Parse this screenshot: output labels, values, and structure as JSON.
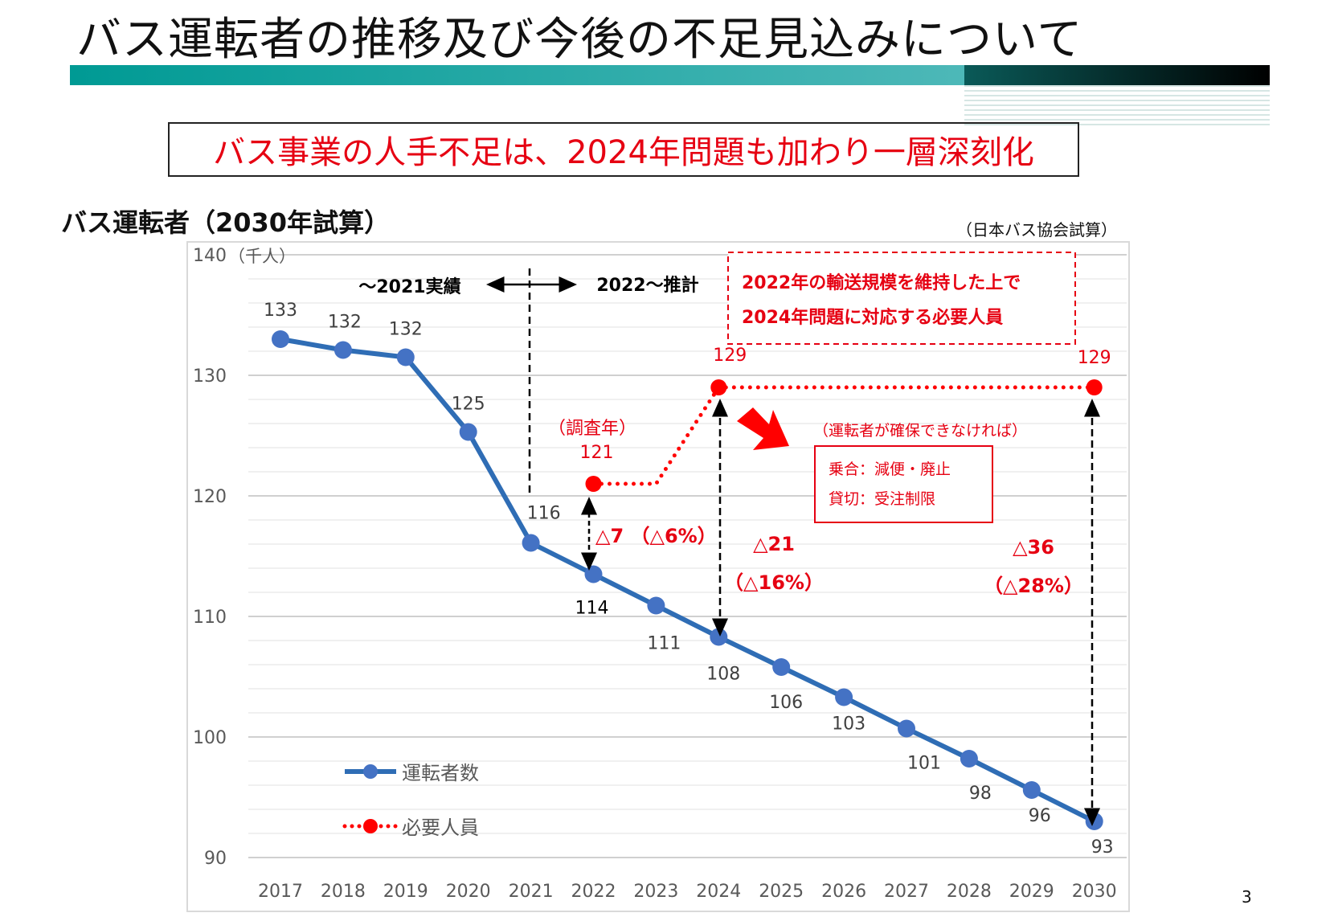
{
  "slide": {
    "title": "バス運転者の推移及び今後の不足見込みについて",
    "headline": "バス事業の人手不足は、2024年問題も加わり一層深刻化",
    "chart_heading": "バス運転者（2030年試算）",
    "source": "（日本バス協会試算）",
    "page_number": "3",
    "colors": {
      "accent_teal": "#009a94",
      "headline_red": "#e60012",
      "series_blue": "#4472c4",
      "series_line": "#2f6db5",
      "series_red": "#ff0000"
    }
  },
  "chart_data": {
    "type": "line",
    "unit_label": "（千人）",
    "categories": [
      "2017",
      "2018",
      "2019",
      "2020",
      "2021",
      "2022",
      "2023",
      "2024",
      "2025",
      "2026",
      "2027",
      "2028",
      "2029",
      "2030"
    ],
    "ylim": [
      90,
      140
    ],
    "yticks": [
      "90",
      "100",
      "110",
      "120",
      "130",
      "140"
    ],
    "grid": true,
    "legend_position": "bottom-left",
    "series": [
      {
        "name": "運転者数",
        "color": "#4472c4",
        "values": [
          133.0,
          132.1,
          131.5,
          125.3,
          116.1,
          113.5,
          110.9,
          108.3,
          105.8,
          103.3,
          100.7,
          98.2,
          95.6,
          93.0
        ],
        "labels": [
          "133",
          "132",
          "132",
          "125",
          "116",
          "114",
          "111",
          "108",
          "106",
          "103",
          "101",
          "98",
          "96",
          "93"
        ]
      },
      {
        "name": "必要人員",
        "color": "#ff0000",
        "style": "dotted",
        "values": [
          null,
          null,
          null,
          null,
          null,
          121,
          121,
          129,
          129,
          129,
          129,
          129,
          129,
          129
        ],
        "markers": [
          "2022",
          "2024",
          "2030"
        ],
        "labels": {
          "2022": "121",
          "2024": "129",
          "2030": "129"
        }
      }
    ],
    "annotations": {
      "actual_label": "～2021実績",
      "forecast_label": "2022～推計",
      "survey_year": "（調査年）",
      "required_box": [
        "2022年の輸送規模を維持した上で",
        "2024年問題に対応する必要人員"
      ],
      "if_not_secured": "（運転者が確保できなければ）",
      "impact_box": [
        "乗合：減便・廃止",
        "貸切：受注制限"
      ],
      "gap_2022": "△7 （△6%）",
      "gap_2024": [
        "△21",
        "（△16%）"
      ],
      "gap_2030": [
        "△36",
        "（△28%）"
      ]
    }
  }
}
